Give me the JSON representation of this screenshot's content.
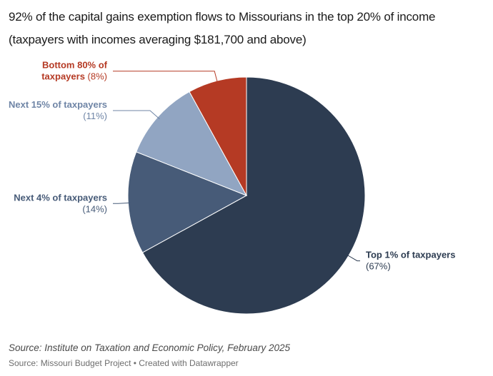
{
  "header": {
    "title": "92% of the capital gains exemption flows to Missourians in the top 20% of income",
    "subtitle": "(taxpayers with incomes averaging $181,700 and above)"
  },
  "chart_data": {
    "type": "pie",
    "title": "92% of the capital gains exemption flows to Missourians in the top 20% of income",
    "subtitle": "(taxpayers with incomes averaging $181,700 and above)",
    "slices": [
      {
        "name": "Top 1% of taxpayers",
        "lines": [
          "Top 1% of taxpayers"
        ],
        "value": 67,
        "value_label": "(67%)",
        "color": "#2d3c51",
        "label_color": "#2d3c51"
      },
      {
        "name": "Next 4% of taxpayers",
        "lines": [
          "Next 4% of taxpayers"
        ],
        "value": 14,
        "value_label": "(14%)",
        "color": "#475b78",
        "label_color": "#475b78"
      },
      {
        "name": "Next 15% of taxpayers",
        "lines": [
          "Next 15% of taxpayers"
        ],
        "value": 11,
        "value_label": "(11%)",
        "color": "#91a5c2",
        "label_color": "#6f85a6"
      },
      {
        "name": "Bottom 80% of taxpayers",
        "lines": [
          "Bottom 80% of",
          "taxpayers"
        ],
        "value": 8,
        "value_label": "(8%)",
        "color": "#b53a24",
        "label_color": "#b53a24"
      }
    ],
    "start_angle": "12 o'clock",
    "direction": "clockwise",
    "legend": "none"
  },
  "footer": {
    "source": "Source: Institute on Taxation and Economic Policy, February 2025",
    "credit": "Source: Missouri Budget Project • Created with Datawrapper"
  }
}
